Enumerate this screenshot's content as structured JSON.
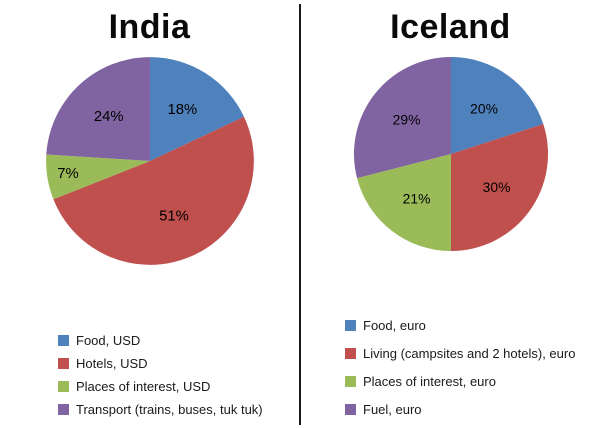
{
  "chart_data": [
    {
      "type": "pie",
      "title": "India",
      "labels": [
        "Food, USD",
        "Hotels, USD",
        "Places of interest, USD",
        "Transport (trains, buses, tuk tuk)"
      ],
      "values": [
        18,
        51,
        7,
        24
      ],
      "data_labels": [
        "18%",
        "51%",
        "7%",
        "24%"
      ],
      "colors": [
        "#4f81bd",
        "#c0504d",
        "#9bbb59",
        "#8064a2"
      ],
      "start_angle": 0,
      "direction": "clockwise",
      "legend_position": "bottom-left"
    },
    {
      "type": "pie",
      "title": "Iceland",
      "labels": [
        "Food, euro",
        "Living (campsites and 2 hotels), euro",
        "Places of interest, euro",
        "Fuel, euro"
      ],
      "values": [
        20,
        30,
        21,
        29
      ],
      "data_labels": [
        "20%",
        "30%",
        "21%",
        "29%"
      ],
      "colors": [
        "#4f81bd",
        "#c0504d",
        "#9bbb59",
        "#8064a2"
      ],
      "start_angle": 0,
      "direction": "clockwise",
      "legend_position": "bottom-left"
    }
  ]
}
